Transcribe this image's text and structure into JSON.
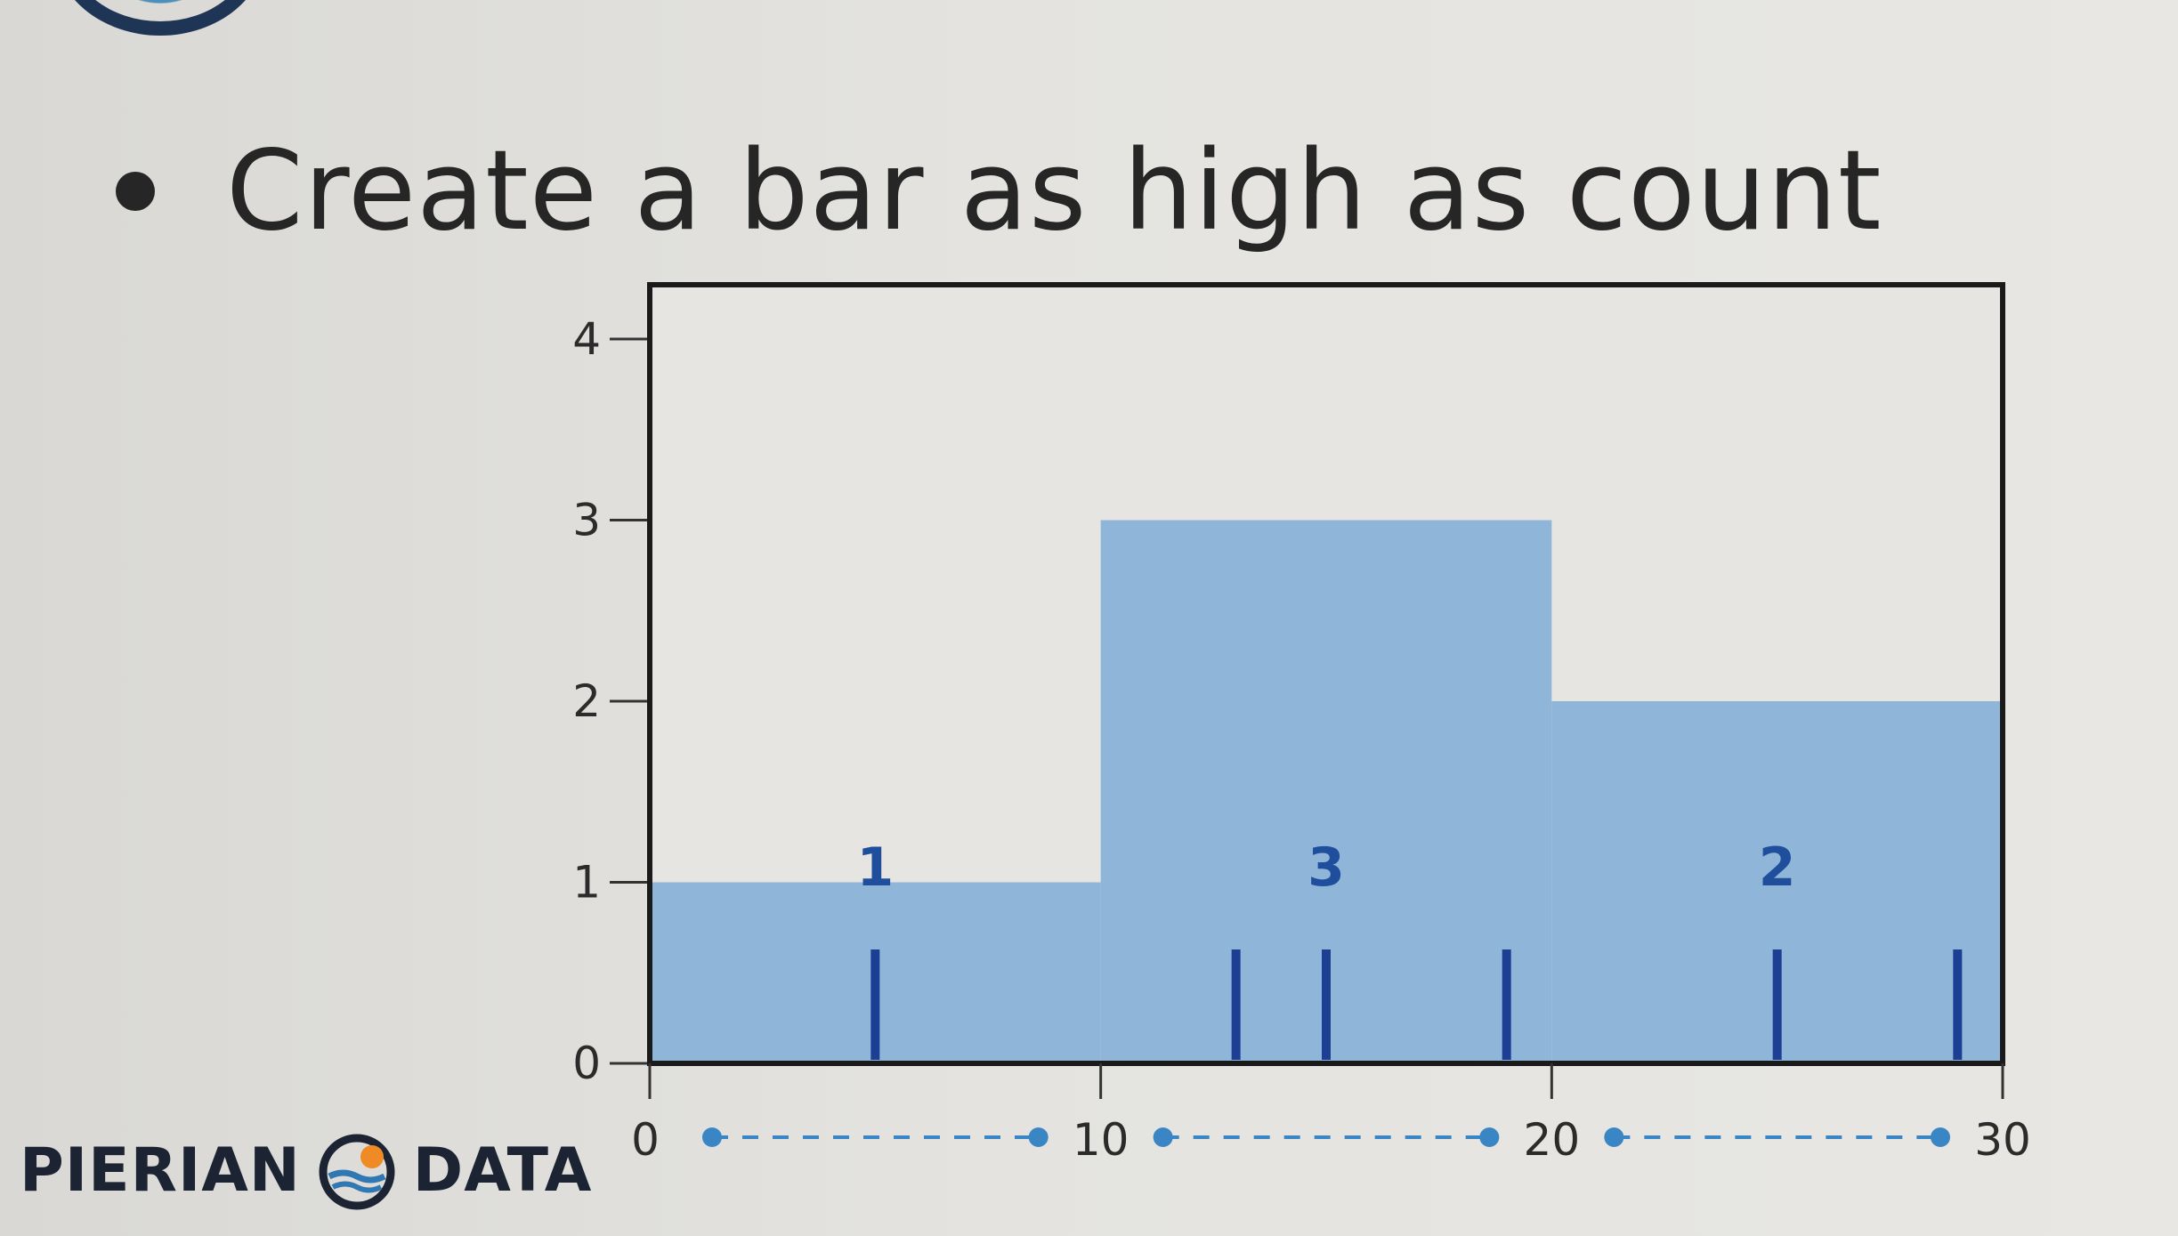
{
  "slide": {
    "bullet": "Create a bar as high as count"
  },
  "brand": {
    "word1": "PIERIAN",
    "word2": "DATA",
    "icon": "pierian-data-logo-icon",
    "colors": {
      "navy": "#1c2433",
      "blue": "#2f78b4",
      "orange": "#f08a24"
    }
  },
  "chart_data": {
    "type": "bar",
    "variant": "histogram",
    "bins": [
      {
        "start": 0,
        "end": 10,
        "count": 1,
        "label": "1"
      },
      {
        "start": 10,
        "end": 20,
        "count": 3,
        "label": "3"
      },
      {
        "start": 20,
        "end": 30,
        "count": 2,
        "label": "2"
      }
    ],
    "rug_values": [
      5,
      13,
      15,
      19,
      25,
      29
    ],
    "x_ticks": [
      "0",
      "10",
      "20",
      "30"
    ],
    "y_ticks": [
      "0",
      "1",
      "2",
      "3",
      "4"
    ],
    "xlim": [
      0,
      30
    ],
    "ylim": [
      0,
      4.3
    ],
    "grid": false,
    "colors": {
      "bar": "#8fb6d9",
      "rug": "#1c3f94",
      "label": "#1f4f9c",
      "range": "#3a86c4",
      "axis": "#1a1a1a"
    }
  }
}
